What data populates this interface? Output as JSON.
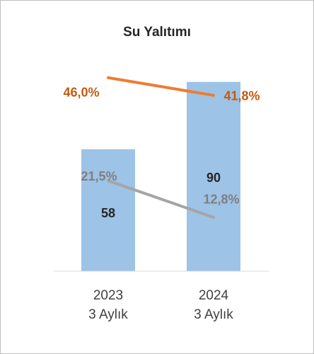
{
  "chart_data": {
    "type": "bar",
    "title": "Su Yalıtımı",
    "categories": [
      [
        "2023",
        "3 Aylık"
      ],
      [
        "2024",
        "3 Aylık"
      ]
    ],
    "values": [
      58,
      90
    ],
    "color": "#9dc3e6",
    "ylim": [
      0,
      100
    ],
    "y2lim": [
      0,
      50
    ],
    "series": [
      {
        "type": "line",
        "axis": "y2",
        "color": "#ed7d31",
        "label_color": "#c55a11",
        "values": [
          46.0,
          41.8
        ],
        "value_labels": [
          "46,0%",
          "41,8%"
        ]
      },
      {
        "type": "line",
        "axis": "y2",
        "color": "#a5a5a5",
        "label_color": "#7f7f7f",
        "values": [
          21.5,
          12.8
        ],
        "value_labels": [
          "21,5%",
          "12,8%"
        ]
      }
    ]
  }
}
